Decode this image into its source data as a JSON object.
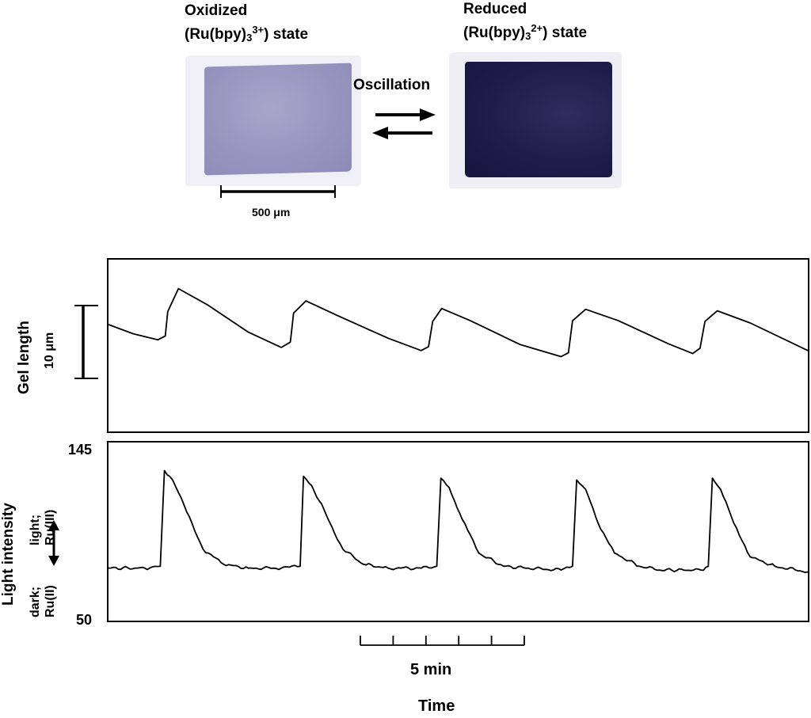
{
  "figure": {
    "oxidized_label": {
      "line1": "Oxidized",
      "line2_prefix": "(Ru(bpy)",
      "line2_sub": "3",
      "line2_sup": "3+",
      "line2_suffix": ") state"
    },
    "reduced_label": {
      "line1": "Reduced",
      "line2_prefix": "(Ru(bpy)",
      "line2_sub": "3",
      "line2_sup": "2+",
      "line2_suffix": ") state"
    },
    "oscillation_label": "Oscillation",
    "scale_bar_label": "500 μm"
  },
  "chart_data": [
    {
      "type": "line",
      "ylabel": "Gel length",
      "scale_bar_label": "10 μm",
      "x": [
        0,
        3,
        6,
        6.9,
        7.2,
        8.5,
        12,
        17,
        21,
        22.1,
        22.5,
        24,
        28,
        34,
        38,
        38.9,
        39.4,
        40.5,
        44,
        50,
        55,
        55.9,
        56.4,
        58,
        62,
        68,
        71,
        71.9,
        72.5,
        74,
        78,
        85
      ],
      "y": [
        4.5,
        3.3,
        2.5,
        3.0,
        6.2,
        9.2,
        7.1,
        3.5,
        1.5,
        2.2,
        6.0,
        7.6,
        5.6,
        2.7,
        1.1,
        1.6,
        4.9,
        6.6,
        5.0,
        1.9,
        0.3,
        0.8,
        5.0,
        6.5,
        5.0,
        2.0,
        0.7,
        1.4,
        4.9,
        6.3,
        4.7,
        1.1
      ],
      "ylim": [
        -9.5,
        13
      ],
      "xlim": [
        0,
        85
      ]
    },
    {
      "type": "line",
      "ylabel": "Light intensity",
      "annotation_top": [
        "light;",
        "Ru(III)"
      ],
      "annotation_bottom": [
        "dark;",
        "Ru(II)"
      ],
      "y_ticks": [
        "145",
        "50"
      ],
      "ylim": [
        50,
        145
      ],
      "xlim": [
        0,
        85
      ],
      "x": [
        0,
        5,
        6.3,
        6.8,
        7.8,
        9.5,
        11.5,
        14,
        17,
        21,
        23.3,
        23.7,
        24.7,
        26.5,
        28.5,
        31,
        34,
        38,
        39.9,
        40.4,
        41.4,
        43,
        45,
        48,
        51,
        55,
        56.4,
        56.9,
        58,
        59.5,
        61.5,
        64.5,
        67,
        72,
        72.9,
        73.4,
        74.4,
        76,
        78,
        81,
        85
      ],
      "y": [
        78,
        78,
        79,
        130,
        125,
        108,
        88,
        80,
        78,
        78,
        79,
        127,
        122,
        106,
        88,
        80,
        78,
        78,
        79,
        126,
        121,
        104,
        86,
        79,
        78,
        77,
        79,
        125,
        120,
        102,
        86,
        79,
        77,
        77,
        79,
        126,
        120,
        102,
        84,
        79,
        76
      ]
    }
  ],
  "time_axis": {
    "scale_label": "5 min",
    "axis_label": "Time"
  },
  "colors": {
    "ink": "#000000",
    "oxidized_gel": "#9c97c1",
    "reduced_gel": "#1f1b4a"
  }
}
